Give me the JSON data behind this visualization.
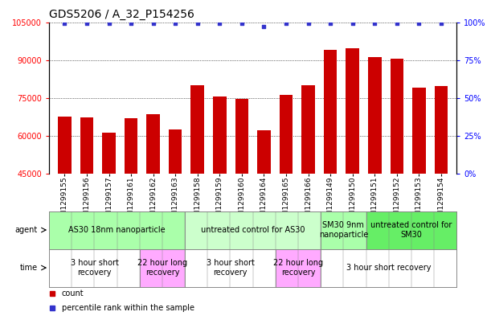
{
  "title": "GDS5206 / A_32_P154256",
  "samples": [
    "GSM1299155",
    "GSM1299156",
    "GSM1299157",
    "GSM1299161",
    "GSM1299162",
    "GSM1299163",
    "GSM1299158",
    "GSM1299159",
    "GSM1299160",
    "GSM1299164",
    "GSM1299165",
    "GSM1299166",
    "GSM1299149",
    "GSM1299150",
    "GSM1299151",
    "GSM1299152",
    "GSM1299153",
    "GSM1299154"
  ],
  "bar_values": [
    67500,
    67200,
    61000,
    67000,
    68500,
    62500,
    80000,
    75500,
    74500,
    62000,
    76000,
    80000,
    94000,
    94500,
    91000,
    90500,
    79000,
    79500
  ],
  "percentile_values": [
    99,
    99,
    99,
    99,
    99,
    99,
    99,
    99,
    99,
    97,
    99,
    99,
    99,
    99,
    99,
    99,
    99,
    99
  ],
  "bar_color": "#cc0000",
  "percentile_color": "#3333cc",
  "ylim_left": [
    45000,
    105000
  ],
  "ylim_right": [
    0,
    100
  ],
  "yticks_left": [
    45000,
    60000,
    75000,
    90000,
    105000
  ],
  "yticks_right": [
    0,
    25,
    50,
    75,
    100
  ],
  "grid_values": [
    60000,
    75000,
    90000,
    105000
  ],
  "agent_groups": [
    {
      "label": "AS30 18nm nanoparticle",
      "start": 0,
      "end": 6,
      "color": "#aaffaa"
    },
    {
      "label": "untreated control for AS30",
      "start": 6,
      "end": 12,
      "color": "#ccffcc"
    },
    {
      "label": "SM30 9nm\nnanoparticle",
      "start": 12,
      "end": 14,
      "color": "#aaffaa"
    },
    {
      "label": "untreated control for\nSM30",
      "start": 14,
      "end": 18,
      "color": "#66ee66"
    }
  ],
  "time_groups": [
    {
      "label": "3 hour short\nrecovery",
      "start": 0,
      "end": 4,
      "color": "#ffffff"
    },
    {
      "label": "22 hour long\nrecovery",
      "start": 4,
      "end": 6,
      "color": "#ffaaff"
    },
    {
      "label": "3 hour short\nrecovery",
      "start": 6,
      "end": 10,
      "color": "#ffffff"
    },
    {
      "label": "22 hour long\nrecovery",
      "start": 10,
      "end": 12,
      "color": "#ffaaff"
    },
    {
      "label": "3 hour short recovery",
      "start": 12,
      "end": 18,
      "color": "#ffffff"
    }
  ],
  "legend_count_color": "#cc0000",
  "legend_percentile_color": "#3333cc",
  "title_fontsize": 10,
  "tick_fontsize": 7,
  "bar_tick_fontsize": 6.5,
  "row_label_fontsize": 7,
  "cell_fontsize": 7
}
